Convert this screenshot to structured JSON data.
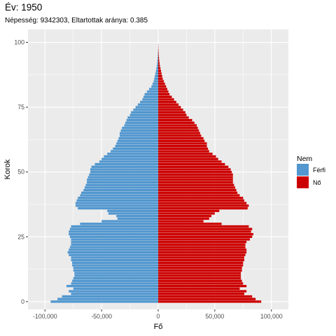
{
  "title": "Év: 1950",
  "subtitle": "Népesség: 9342303, Eltartottak aránya: 0.385",
  "chart_data": {
    "type": "bar",
    "orientation": "horizontal",
    "xlabel": "Fő",
    "ylabel": "Korok",
    "xlim": [
      -115000,
      115000
    ],
    "ylim": [
      -3,
      105
    ],
    "x_ticks": [
      -100000,
      -50000,
      0,
      50000,
      100000
    ],
    "x_tick_labels": [
      "-100,000",
      "-50,000",
      "0",
      "50,000",
      "100,000"
    ],
    "y_ticks": [
      0,
      25,
      50,
      75,
      100
    ],
    "y_tick_labels": [
      "0",
      "25",
      "50",
      "75",
      "100"
    ],
    "grid": true,
    "legend": {
      "title": "Nem",
      "position": "right"
    },
    "ages": [
      0,
      1,
      2,
      3,
      4,
      5,
      6,
      7,
      8,
      9,
      10,
      11,
      12,
      13,
      14,
      15,
      16,
      17,
      18,
      19,
      20,
      21,
      22,
      23,
      24,
      25,
      26,
      27,
      28,
      29,
      30,
      31,
      32,
      33,
      34,
      35,
      36,
      37,
      38,
      39,
      40,
      41,
      42,
      43,
      44,
      45,
      46,
      47,
      48,
      49,
      50,
      51,
      52,
      53,
      54,
      55,
      56,
      57,
      58,
      59,
      60,
      61,
      62,
      63,
      64,
      65,
      66,
      67,
      68,
      69,
      70,
      71,
      72,
      73,
      74,
      75,
      76,
      77,
      78,
      79,
      80,
      81,
      82,
      83,
      84,
      85,
      86,
      87,
      88,
      89,
      90,
      91,
      92,
      93,
      94,
      95,
      96,
      97,
      98,
      99
    ],
    "series": [
      {
        "name": "Férfi",
        "color": "#5297cf",
        "values": [
          95000,
          89000,
          85000,
          77000,
          79000,
          75000,
          81000,
          77000,
          76000,
          75000,
          74000,
          74000,
          75000,
          75000,
          76000,
          76000,
          77000,
          77000,
          79000,
          80000,
          79000,
          78000,
          77000,
          77000,
          77000,
          78000,
          79000,
          79000,
          78000,
          77000,
          69000,
          50000,
          36000,
          37000,
          44000,
          45000,
          71000,
          73000,
          73000,
          72000,
          71000,
          69000,
          68000,
          66000,
          65000,
          64000,
          63000,
          63000,
          62000,
          61000,
          60000,
          60000,
          59000,
          56000,
          52000,
          50000,
          48000,
          45000,
          42000,
          40000,
          38000,
          37000,
          36000,
          35000,
          34000,
          34000,
          33000,
          32000,
          30000,
          29000,
          28000,
          27000,
          25000,
          24000,
          22000,
          20000,
          18000,
          16000,
          14000,
          13000,
          12000,
          10000,
          8000,
          6000,
          5000,
          4000,
          3500,
          3000,
          2500,
          2000,
          1600,
          1200,
          900,
          700,
          500,
          350,
          250,
          150,
          100,
          50
        ]
      },
      {
        "name": "Nő",
        "color": "#cd0000",
        "values": [
          91000,
          86000,
          83000,
          76000,
          78000,
          72000,
          78000,
          75000,
          74000,
          73000,
          73000,
          73000,
          74000,
          74000,
          75000,
          75000,
          76000,
          76000,
          77000,
          78000,
          78000,
          77000,
          77000,
          78000,
          81000,
          83000,
          84000,
          82000,
          83000,
          80000,
          56000,
          40000,
          45000,
          47000,
          50000,
          54000,
          79000,
          80000,
          78000,
          76000,
          75000,
          72000,
          70000,
          69000,
          68000,
          67000,
          66000,
          66000,
          66000,
          66000,
          65000,
          64000,
          62000,
          59000,
          56000,
          53000,
          51000,
          48000,
          45000,
          44000,
          43000,
          43000,
          41000,
          40000,
          38000,
          37000,
          36000,
          35000,
          34000,
          32000,
          30000,
          27000,
          25000,
          24000,
          22000,
          20000,
          18000,
          16000,
          14000,
          12000,
          10000,
          9000,
          8000,
          7000,
          6000,
          5000,
          4000,
          3500,
          3000,
          2500,
          2000,
          1500,
          1200,
          900,
          700,
          500,
          350,
          250,
          150,
          100
        ]
      }
    ]
  }
}
